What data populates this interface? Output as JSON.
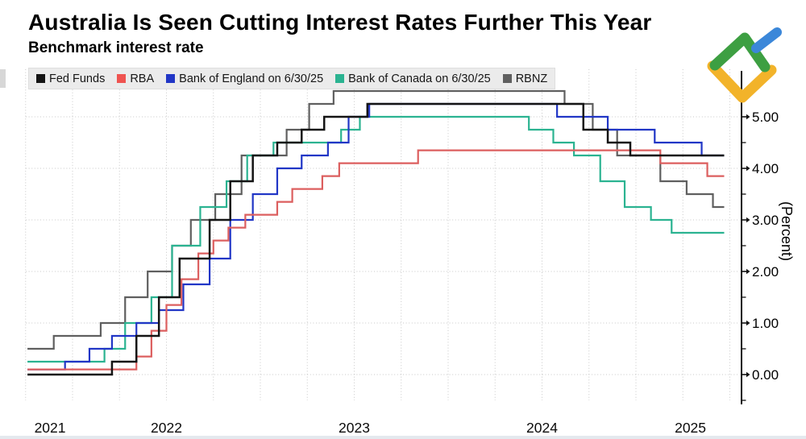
{
  "header": {
    "title": "Australia Is Seen Cutting Interest Rates Further This Year",
    "subtitle": "Benchmark interest rate"
  },
  "legend": [
    {
      "label": "Fed Funds",
      "color": "#141414"
    },
    {
      "label": "RBA",
      "color": "#ef5350"
    },
    {
      "label": "Bank of England on 6/30/25",
      "color": "#2136c6"
    },
    {
      "label": "Bank of Canada on 6/30/25",
      "color": "#2bb391"
    },
    {
      "label": "RBNZ",
      "color": "#5f5f5f"
    }
  ],
  "chart_data": {
    "type": "line",
    "step": true,
    "title": "Australia Is Seen Cutting Interest Rates Further This Year",
    "subtitle": "Benchmark interest rate",
    "ylabel": "(Percent)",
    "x_unit": "decimal_year",
    "x_range": [
      2021.76,
      2025.47
    ],
    "y_range": [
      -0.5,
      5.6
    ],
    "grid": "dotted",
    "grid_color": "#c8c8c8",
    "legend_position": "top-left",
    "y_ticks": [
      "0.00",
      "1.00",
      "2.00",
      "3.00",
      "4.00",
      "5.00"
    ],
    "y_minor_tick_step": 0.5,
    "x_ticks": [
      {
        "label": "2021",
        "pos": 2021.88
      },
      {
        "label": "2022",
        "pos": 2022.5
      },
      {
        "label": "2023",
        "pos": 2023.5
      },
      {
        "label": "2024",
        "pos": 2024.5
      },
      {
        "label": "2025",
        "pos": 2025.29
      }
    ],
    "series": [
      {
        "id": "fed-funds",
        "name": "Fed Funds",
        "color": "#141414",
        "width": 2.5,
        "points": [
          [
            2021.76,
            0.0
          ],
          [
            2022.21,
            0.25
          ],
          [
            2022.34,
            0.75
          ],
          [
            2022.46,
            1.5
          ],
          [
            2022.57,
            2.25
          ],
          [
            2022.73,
            3.0
          ],
          [
            2022.84,
            3.75
          ],
          [
            2022.96,
            4.25
          ],
          [
            2023.09,
            4.5
          ],
          [
            2023.22,
            4.75
          ],
          [
            2023.34,
            5.0
          ],
          [
            2023.57,
            5.25
          ],
          [
            2024.72,
            4.75
          ],
          [
            2024.85,
            4.5
          ],
          [
            2024.97,
            4.25
          ],
          [
            2025.47,
            4.25
          ]
        ]
      },
      {
        "id": "rba",
        "name": "RBA",
        "color": "#dc5f5f",
        "width": 2.2,
        "points": [
          [
            2021.76,
            0.1
          ],
          [
            2022.34,
            0.35
          ],
          [
            2022.42,
            0.85
          ],
          [
            2022.5,
            1.35
          ],
          [
            2022.58,
            1.85
          ],
          [
            2022.67,
            2.35
          ],
          [
            2022.75,
            2.6
          ],
          [
            2022.83,
            2.85
          ],
          [
            2022.92,
            3.1
          ],
          [
            2023.09,
            3.35
          ],
          [
            2023.17,
            3.6
          ],
          [
            2023.33,
            3.85
          ],
          [
            2023.42,
            4.1
          ],
          [
            2023.84,
            4.35
          ],
          [
            2025.13,
            4.1
          ],
          [
            2025.38,
            3.85
          ],
          [
            2025.47,
            3.85
          ]
        ]
      },
      {
        "id": "bank-of-england",
        "name": "Bank of England on 6/30/25",
        "color": "#2136c6",
        "width": 2.2,
        "points": [
          [
            2021.76,
            0.1
          ],
          [
            2021.96,
            0.25
          ],
          [
            2022.09,
            0.5
          ],
          [
            2022.21,
            0.75
          ],
          [
            2022.34,
            1.0
          ],
          [
            2022.46,
            1.25
          ],
          [
            2022.59,
            1.75
          ],
          [
            2022.73,
            2.25
          ],
          [
            2022.84,
            3.0
          ],
          [
            2022.96,
            3.5
          ],
          [
            2023.09,
            4.0
          ],
          [
            2023.22,
            4.25
          ],
          [
            2023.36,
            4.5
          ],
          [
            2023.47,
            5.0
          ],
          [
            2023.58,
            5.25
          ],
          [
            2024.58,
            5.0
          ],
          [
            2024.85,
            4.75
          ],
          [
            2025.1,
            4.5
          ],
          [
            2025.35,
            4.25
          ],
          [
            2025.47,
            4.25
          ]
        ]
      },
      {
        "id": "bank-of-canada",
        "name": "Bank of Canada on 6/30/25",
        "color": "#2bb391",
        "width": 2.2,
        "points": [
          [
            2021.76,
            0.25
          ],
          [
            2022.17,
            0.5
          ],
          [
            2022.28,
            1.0
          ],
          [
            2022.42,
            1.5
          ],
          [
            2022.53,
            2.5
          ],
          [
            2022.68,
            3.25
          ],
          [
            2022.82,
            3.75
          ],
          [
            2022.93,
            4.25
          ],
          [
            2023.07,
            4.5
          ],
          [
            2023.43,
            4.75
          ],
          [
            2023.53,
            5.0
          ],
          [
            2024.43,
            4.75
          ],
          [
            2024.56,
            4.5
          ],
          [
            2024.67,
            4.25
          ],
          [
            2024.81,
            3.75
          ],
          [
            2024.94,
            3.25
          ],
          [
            2025.08,
            3.0
          ],
          [
            2025.19,
            2.75
          ],
          [
            2025.47,
            2.75
          ]
        ]
      },
      {
        "id": "rbnz",
        "name": "RBNZ",
        "color": "#5f5f5f",
        "width": 2.2,
        "points": [
          [
            2021.76,
            0.5
          ],
          [
            2021.9,
            0.75
          ],
          [
            2022.15,
            1.0
          ],
          [
            2022.28,
            1.5
          ],
          [
            2022.4,
            2.0
          ],
          [
            2022.53,
            2.5
          ],
          [
            2022.63,
            3.0
          ],
          [
            2022.76,
            3.5
          ],
          [
            2022.9,
            4.25
          ],
          [
            2023.14,
            4.75
          ],
          [
            2023.26,
            5.25
          ],
          [
            2023.39,
            5.5
          ],
          [
            2024.62,
            5.25
          ],
          [
            2024.77,
            4.75
          ],
          [
            2024.9,
            4.25
          ],
          [
            2025.13,
            3.75
          ],
          [
            2025.27,
            3.5
          ],
          [
            2025.41,
            3.25
          ],
          [
            2025.47,
            3.25
          ]
        ]
      }
    ]
  },
  "watermark": {
    "logo_colors": {
      "green": "#3d9f42",
      "blue": "#3b87d9",
      "yellow": "#f2b32a"
    }
  }
}
